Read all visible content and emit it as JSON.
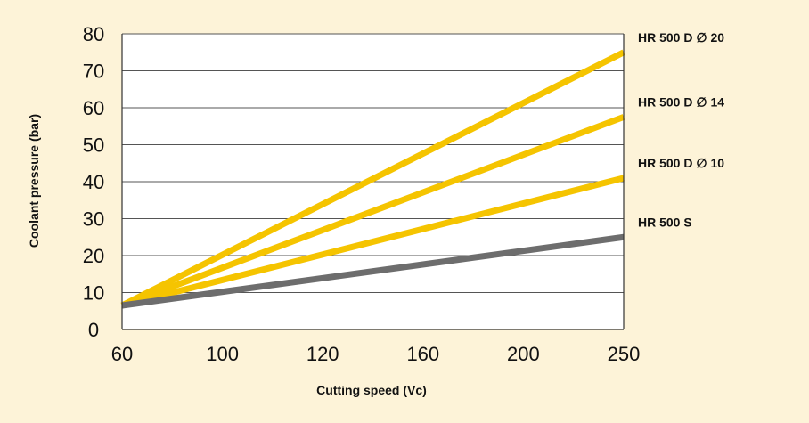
{
  "chart_data": {
    "type": "line",
    "title": "",
    "xlabel": "Cutting speed (Vc)",
    "ylabel": "Coolant pressure (bar)",
    "x_ticks": [
      "60",
      "100",
      "120",
      "160",
      "200",
      "250"
    ],
    "y_ticks": [
      0,
      10,
      20,
      30,
      40,
      50,
      60,
      70,
      80
    ],
    "ylim": [
      0,
      80
    ],
    "grid": "horizontal",
    "legend": "right end labels",
    "series": [
      {
        "name": "HR 500 D ∅ 20",
        "color": "#f5c400",
        "values": [
          6.5,
          75
        ]
      },
      {
        "name": "HR 500 D ∅ 14",
        "color": "#f5c400",
        "values": [
          6.5,
          57.5
        ]
      },
      {
        "name": "HR 500 D ∅ 10",
        "color": "#f5c400",
        "values": [
          6.5,
          41
        ]
      },
      {
        "name": "HR 500 S",
        "color": "#6d6d6d",
        "values": [
          6.5,
          25
        ]
      }
    ],
    "x_points": [
      "60",
      "250"
    ]
  }
}
